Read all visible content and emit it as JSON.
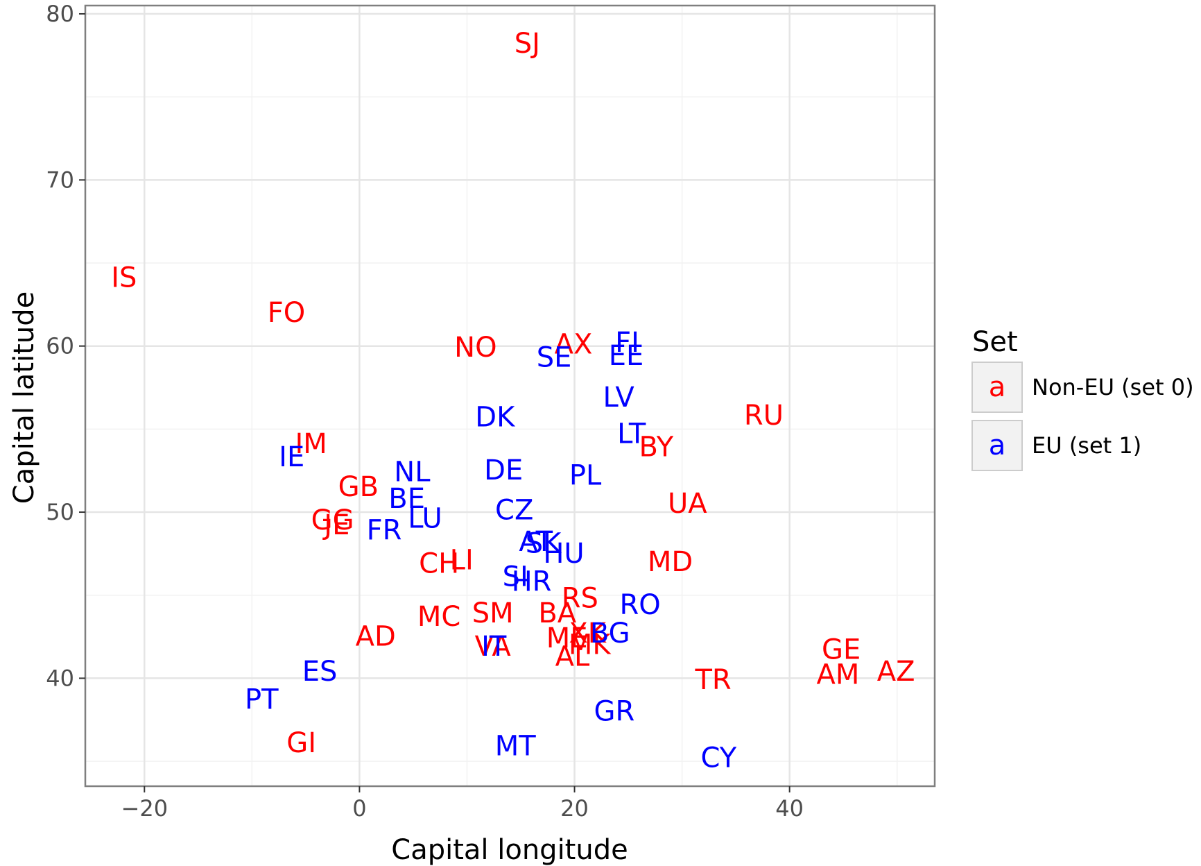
{
  "chart_data": {
    "type": "scatter",
    "title": "",
    "xlabel": "Capital longitude",
    "ylabel": "Capital latitude",
    "xlim": [
      -25.5,
      53.5
    ],
    "ylim": [
      33.5,
      80.5
    ],
    "xticks": [
      -20,
      0,
      20,
      40
    ],
    "xtick_labels": [
      "−20",
      "0",
      "20",
      "40"
    ],
    "yticks": [
      40,
      50,
      60,
      70,
      80
    ],
    "ytick_labels": [
      "40",
      "50",
      "60",
      "70",
      "80"
    ],
    "grid": true,
    "legend": {
      "title": "Set",
      "placement": "right",
      "key_glyph": "a",
      "entries": [
        {
          "label": "Non-EU (set 0)",
          "color": "#ff0000"
        },
        {
          "label": "EU (set 1)",
          "color": "#0000ff"
        }
      ]
    },
    "series": [
      {
        "name": "Non-EU (set 0)",
        "color": "#ff0000",
        "points": [
          {
            "label": "SJ",
            "x": 15.6,
            "y": 78.2
          },
          {
            "label": "IS",
            "x": -21.9,
            "y": 64.1
          },
          {
            "label": "FO",
            "x": -6.8,
            "y": 62.0
          },
          {
            "label": "NO",
            "x": 10.8,
            "y": 59.9
          },
          {
            "label": "AX",
            "x": 19.9,
            "y": 60.1
          },
          {
            "label": "RU",
            "x": 37.6,
            "y": 55.8
          },
          {
            "label": "IM",
            "x": -4.5,
            "y": 54.1
          },
          {
            "label": "BY",
            "x": 27.6,
            "y": 53.9
          },
          {
            "label": "GB",
            "x": -0.1,
            "y": 51.5
          },
          {
            "label": "UA",
            "x": 30.5,
            "y": 50.5
          },
          {
            "label": "GG",
            "x": -2.5,
            "y": 49.5
          },
          {
            "label": "JE",
            "x": -2.1,
            "y": 49.2
          },
          {
            "label": "CH",
            "x": 7.4,
            "y": 46.9
          },
          {
            "label": "LI",
            "x": 9.5,
            "y": 47.1
          },
          {
            "label": "MD",
            "x": 28.9,
            "y": 47.0
          },
          {
            "label": "RS",
            "x": 20.5,
            "y": 44.8
          },
          {
            "label": "MC",
            "x": 7.4,
            "y": 43.7
          },
          {
            "label": "SM",
            "x": 12.4,
            "y": 43.9
          },
          {
            "label": "BA",
            "x": 18.4,
            "y": 43.9
          },
          {
            "label": "AD",
            "x": 1.5,
            "y": 42.5
          },
          {
            "label": "ME",
            "x": 19.3,
            "y": 42.4
          },
          {
            "label": "XK",
            "x": 21.2,
            "y": 42.7
          },
          {
            "label": "MK",
            "x": 21.4,
            "y": 42.0
          },
          {
            "label": "VA",
            "x": 12.4,
            "y": 41.9
          },
          {
            "label": "AL",
            "x": 19.8,
            "y": 41.3
          },
          {
            "label": "GE",
            "x": 44.8,
            "y": 41.7
          },
          {
            "label": "AM",
            "x": 44.5,
            "y": 40.2
          },
          {
            "label": "AZ",
            "x": 49.9,
            "y": 40.4
          },
          {
            "label": "TR",
            "x": 32.9,
            "y": 39.9
          },
          {
            "label": "GI",
            "x": -5.4,
            "y": 36.1
          }
        ]
      },
      {
        "name": "EU (set 1)",
        "color": "#0000ff",
        "points": [
          {
            "label": "FI",
            "x": 24.9,
            "y": 60.2
          },
          {
            "label": "SE",
            "x": 18.1,
            "y": 59.3
          },
          {
            "label": "EE",
            "x": 24.8,
            "y": 59.4
          },
          {
            "label": "LV",
            "x": 24.1,
            "y": 56.9
          },
          {
            "label": "DK",
            "x": 12.6,
            "y": 55.7
          },
          {
            "label": "LT",
            "x": 25.3,
            "y": 54.7
          },
          {
            "label": "IE",
            "x": -6.3,
            "y": 53.3
          },
          {
            "label": "NL",
            "x": 4.9,
            "y": 52.4
          },
          {
            "label": "DE",
            "x": 13.4,
            "y": 52.5
          },
          {
            "label": "PL",
            "x": 21.0,
            "y": 52.2
          },
          {
            "label": "BE",
            "x": 4.4,
            "y": 50.8
          },
          {
            "label": "CZ",
            "x": 14.4,
            "y": 50.1
          },
          {
            "label": "LU",
            "x": 6.1,
            "y": 49.6
          },
          {
            "label": "FR",
            "x": 2.3,
            "y": 48.9
          },
          {
            "label": "AT",
            "x": 16.4,
            "y": 48.2
          },
          {
            "label": "SK",
            "x": 17.1,
            "y": 48.1
          },
          {
            "label": "HU",
            "x": 19.0,
            "y": 47.5
          },
          {
            "label": "SI",
            "x": 14.5,
            "y": 46.1
          },
          {
            "label": "HR",
            "x": 16.0,
            "y": 45.8
          },
          {
            "label": "RO",
            "x": 26.1,
            "y": 44.4
          },
          {
            "label": "BG",
            "x": 23.3,
            "y": 42.7
          },
          {
            "label": "IT",
            "x": 12.5,
            "y": 41.9
          },
          {
            "label": "ES",
            "x": -3.7,
            "y": 40.4
          },
          {
            "label": "PT",
            "x": -9.1,
            "y": 38.7
          },
          {
            "label": "GR",
            "x": 23.7,
            "y": 38.0
          },
          {
            "label": "MT",
            "x": 14.5,
            "y": 35.9
          },
          {
            "label": "CY",
            "x": 33.4,
            "y": 35.2
          }
        ]
      }
    ]
  }
}
